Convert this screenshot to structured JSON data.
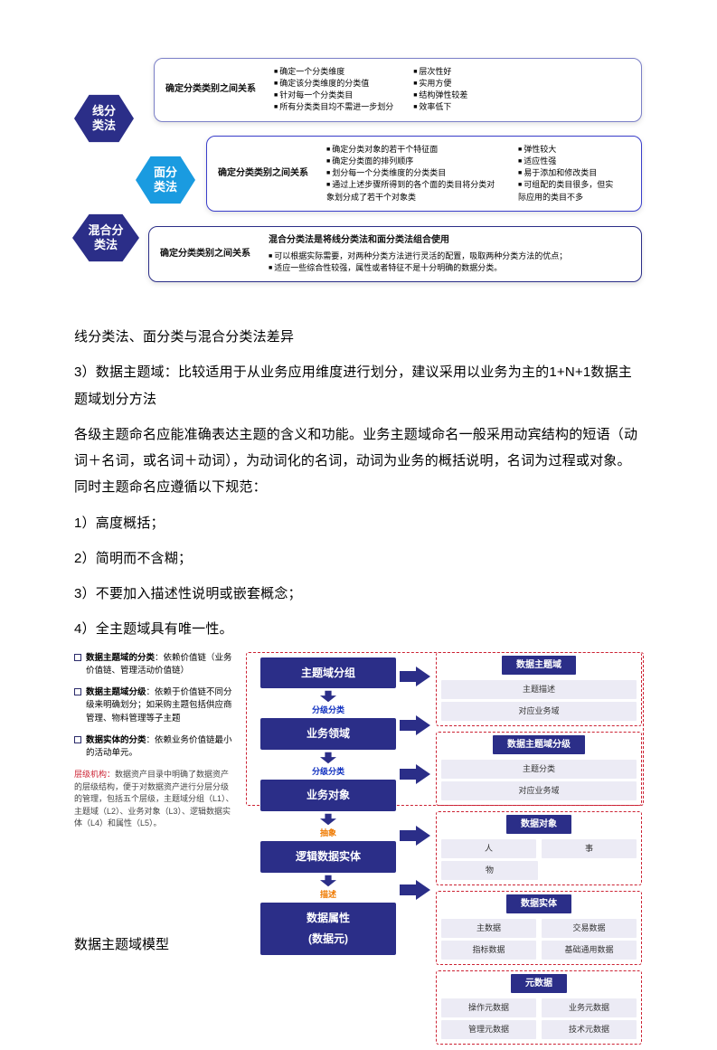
{
  "colors": {
    "navy": "#2b2e88",
    "blue": "#1a9be0",
    "deepblue": "#1030c0",
    "border1": "#7b7fc7",
    "border2": "#3a3ecb",
    "dashRed": "#c23",
    "orange": "#ef7a00",
    "miniBg": "#ecebf5"
  },
  "top": {
    "hex1": "线分\n类法",
    "hex2": "面分\n类法",
    "hex3": "混合分\n类法",
    "rel": "确定分类类别之间关系",
    "box1": {
      "colA": [
        "确定一个分类维度",
        "确定该分类维度的分类值",
        "针对每一个分类类目",
        "所有分类类目均不需进一步划分"
      ],
      "colB": [
        "层次性好",
        "实用方便",
        "结构弹性较差",
        "效率低下"
      ]
    },
    "box2": {
      "colA": [
        "确定分类对象的若干个特征面",
        "确定分类面的排列顺序",
        "划分每一个分类维度的分类类目",
        "通过上述步骤所得到的各个面的类目将分类对象划分成了若干个对象类"
      ],
      "colB": [
        "弹性较大",
        "适应性强",
        "易于添加和修改类目",
        "可组配的类目很多，但实际应用的类目不多"
      ]
    },
    "box3": {
      "title": "混合分类法是将线分类法和面分类法组合使用",
      "items": [
        "可以根据实际需要，对两种分类方法进行灵活的配置，吸取两种分类方法的优点；",
        "适应一些综合性较强，属性或者特征不是十分明确的数据分类。"
      ]
    }
  },
  "body": {
    "p1": "线分类法、面分类与混合分类法差异",
    "p2": "3）数据主题域：比较适用于从业务应用维度进行划分，建议采用以业务为主的1+N+1数据主题域划分方法",
    "p3": "各级主题命名应能准确表达主题的含义和功能。业务主题域命名一般采用动宾结构的短语（动词＋名词，或名词＋动词），为动词化的名词，动词为业务的概括说明，名词为过程或对象。同时主题命名应遵循以下规范：",
    "li1": "1）高度概括；",
    "li2": "2）简明而不含糊；",
    "li3": "3）不要加入描述性说明或嵌套概念；",
    "li4": "4）全主题域具有唯一性。"
  },
  "bottom": {
    "leftNotes": [
      {
        "b": "数据主题域的分类",
        "t": "：依赖价值链（业务价值链、管理活动价值链）"
      },
      {
        "b": "数据主题域分级",
        "t": "：依赖于价值链不同分级来明确划分；如采购主题包括供应商管理、物料管理等子主题"
      },
      {
        "b": "数据实体的分类",
        "t": "：依赖业务价值链最小的活动单元。"
      }
    ],
    "footnote": {
      "red": "层级机构：",
      "t": "数据资产目录中明确了数据资产的层级结构，便于对数据资产进行分层分级的管理，包括五个层级，主题域分组（L1）、主题域（L2）、业务对象（L3）、逻辑数据实体（L4）和属性（L5）。"
    },
    "midBoxes": [
      "主题域分组",
      "业务领域",
      "业务对象",
      "逻辑数据实体",
      "数据属性\n(数据元)"
    ],
    "midLabels": [
      "分级分类",
      "分级分类",
      "抽象",
      "描述"
    ],
    "rightPanels": [
      {
        "title": "数据主题域",
        "rows": [
          [
            "主题描述"
          ],
          [
            "对应业务域"
          ]
        ]
      },
      {
        "title": "数据主题域分级",
        "rows": [
          [
            "主题分类"
          ],
          [
            "对应业务域"
          ]
        ]
      },
      {
        "title": "数据对象",
        "rows": [
          [
            "人",
            "事"
          ],
          [
            "物",
            ""
          ]
        ]
      },
      {
        "title": "数据实体",
        "rows": [
          [
            "主数据",
            "交易数据"
          ],
          [
            "指标数据",
            "基础通用数据"
          ]
        ]
      },
      {
        "title": "元数据",
        "rows": [
          [
            "操作元数据",
            "业务元数据"
          ],
          [
            "管理元数据",
            "技术元数据"
          ]
        ]
      }
    ],
    "footer": "数据主题域模型"
  }
}
